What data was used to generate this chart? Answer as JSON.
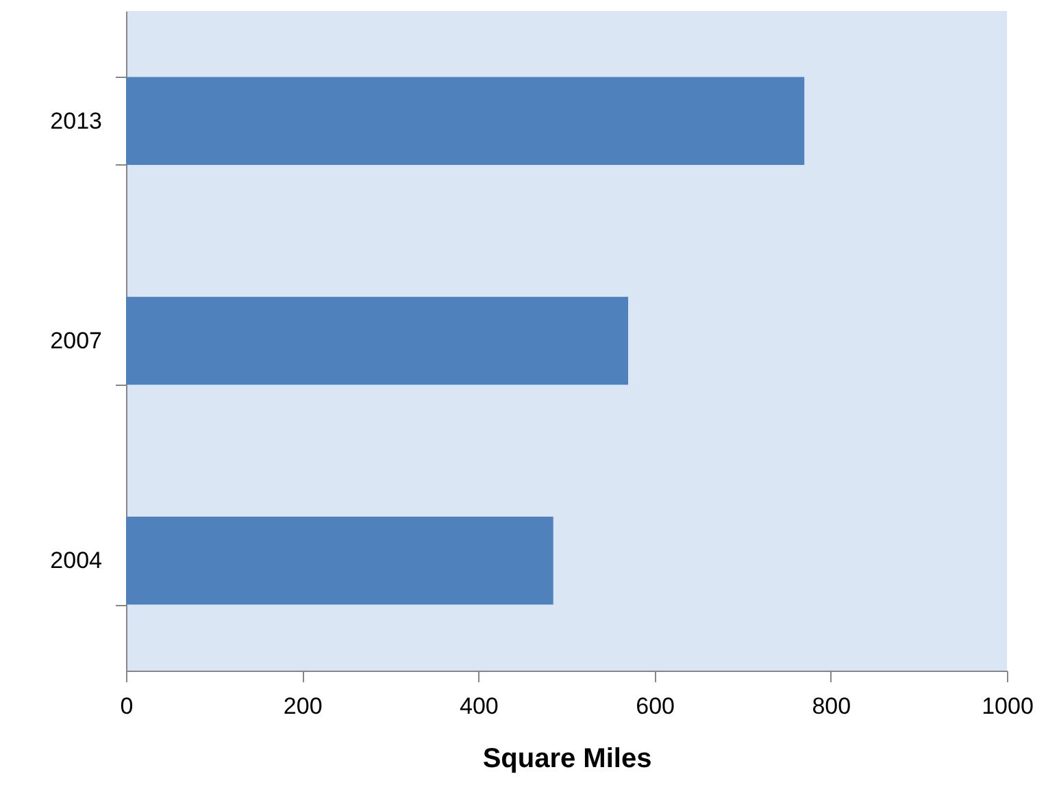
{
  "chart_data": {
    "type": "bar",
    "orientation": "horizontal",
    "xlabel": "Square Miles",
    "categories": [
      "2013",
      "2007",
      "2004"
    ],
    "values": [
      770,
      570,
      485
    ],
    "color": "#4f81bd",
    "xlim": [
      0,
      1000
    ],
    "xticks": [
      0,
      200,
      400,
      600,
      800,
      1000
    ],
    "grid": false
  }
}
